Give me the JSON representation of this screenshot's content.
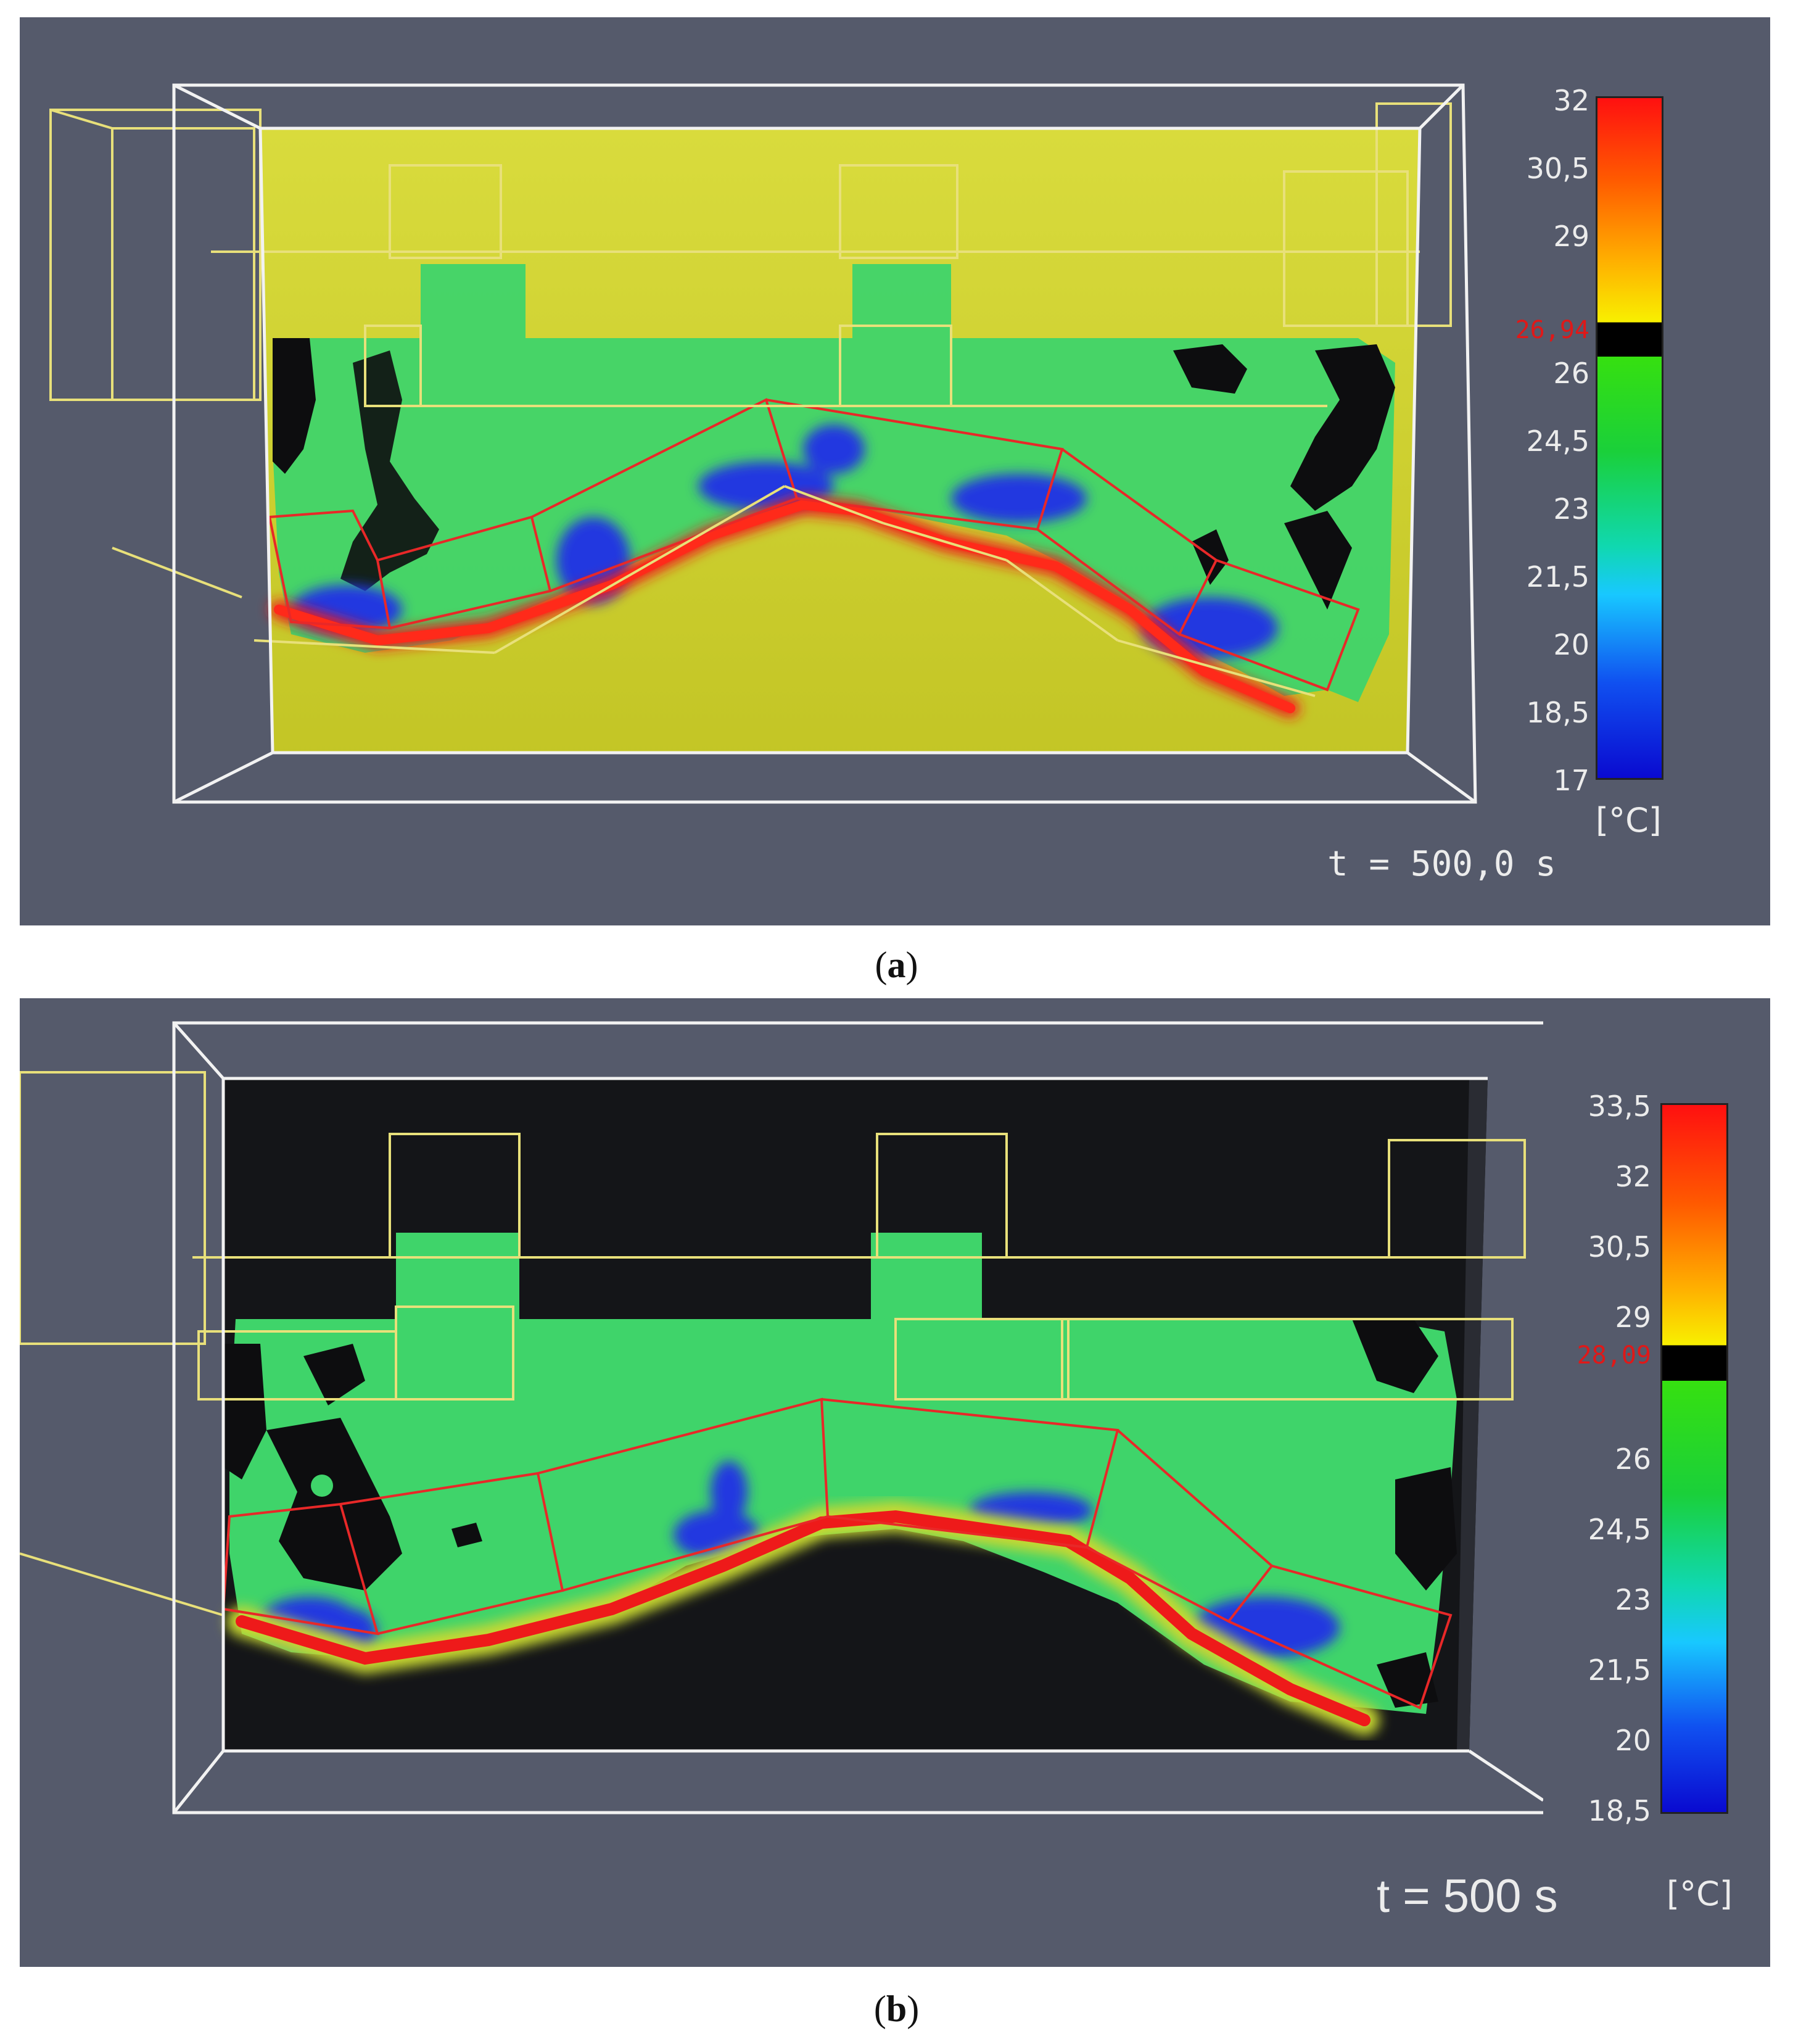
{
  "panels": [
    {
      "id": "a",
      "caption": {
        "open": "(",
        "letter": "a",
        "close": ")"
      },
      "time_label": "t = 500,0 s",
      "colorbar": {
        "ticks": [
          "32",
          "30,5",
          "29",
          "26",
          "24,5",
          "23",
          "21,5",
          "20",
          "18,5",
          "17"
        ],
        "marker_value": "26,94",
        "unit": "[°C]"
      }
    },
    {
      "id": "b",
      "caption": {
        "open": "(",
        "letter": "b",
        "close": ")"
      },
      "time_label": "t = 500 s",
      "colorbar": {
        "ticks": [
          "33,5",
          "32",
          "30,5",
          "29",
          "26",
          "24,5",
          "23",
          "21,5",
          "20",
          "18,5"
        ],
        "marker_value": "28,09",
        "unit": "[°C]"
      }
    }
  ],
  "colors": {
    "background": "#555a6b",
    "panel_a_fill": "#d4d62a",
    "panel_b_fill": "#141518",
    "flow_green": "#3fd46a",
    "cold_blue": "#2238e0",
    "hot_red": "#ee1a1a",
    "outline_yellow": "#e8e07a",
    "outline_red": "#e82828"
  }
}
